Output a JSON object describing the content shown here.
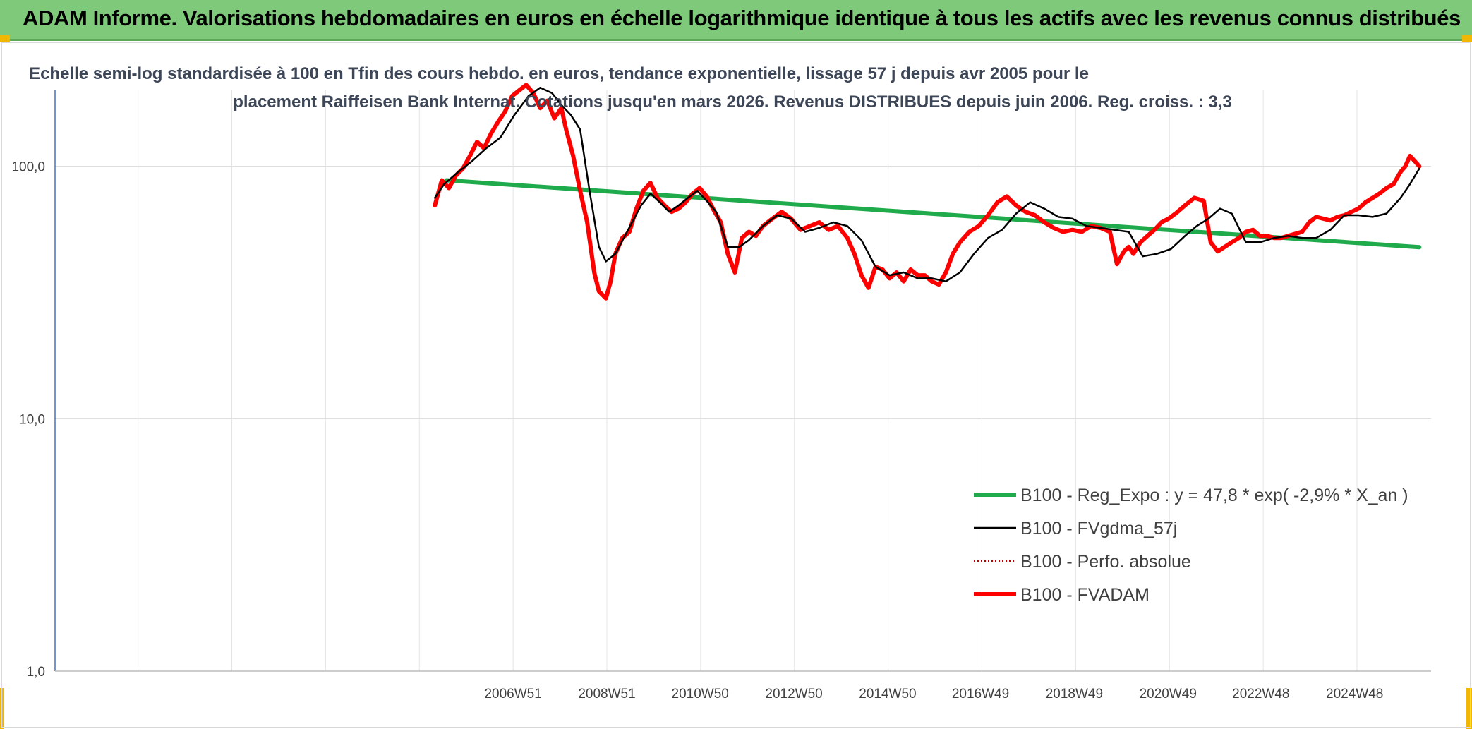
{
  "banner": {
    "title": "ADAM Informe. Valorisations hebdomadaires en euros en échelle logarithmique identique à tous les actifs avec les revenus connus distribués"
  },
  "chart_data": {
    "type": "line",
    "title_lines": [
      "Echelle semi-log standardisée à 100 en Tfin des cours hebdo. en euros, tendance exponentielle, lissage 57 j depuis avr 2005 pour le",
      "placement Raiffeisen Bank Internat. Cotations jusqu'en mars 2026. Revenus DISTRIBUES depuis juin 2006. Reg. croiss. : 3,3"
    ],
    "y_scale": "log",
    "ylim": [
      1,
      200
    ],
    "y_ticks": [
      {
        "value": 1,
        "label": "1,0"
      },
      {
        "value": 10,
        "label": "10,0"
      },
      {
        "value": 100,
        "label": "100,0"
      }
    ],
    "x_range": [
      1997.2,
      2026.55
    ],
    "x_ticks": [
      {
        "value": 2006.97,
        "label": "2006W51"
      },
      {
        "value": 2008.97,
        "label": "2008W51"
      },
      {
        "value": 2010.96,
        "label": "2010W50"
      },
      {
        "value": 2012.96,
        "label": "2012W50"
      },
      {
        "value": 2014.96,
        "label": "2014W50"
      },
      {
        "value": 2016.94,
        "label": "2016W49"
      },
      {
        "value": 2018.94,
        "label": "2018W49"
      },
      {
        "value": 2020.94,
        "label": "2020W49"
      },
      {
        "value": 2022.92,
        "label": "2022W48"
      },
      {
        "value": 2024.92,
        "label": "2024W48"
      }
    ],
    "grid": true,
    "legend_position": "lower-right",
    "series": [
      {
        "name": "B100 - Reg_Expo : y = 47,8 * exp( -2,9% *  X_an )",
        "style": "solid-thick",
        "color": "#1faa4b",
        "x": [
          2005.55,
          2026.3
        ],
        "y": [
          88,
          47.8
        ]
      },
      {
        "name": "B100 - FVgdma_57j",
        "style": "solid-thin",
        "color": "#000000",
        "x": [
          2005.3,
          2005.5,
          2005.8,
          2006.1,
          2006.4,
          2006.7,
          2007.0,
          2007.3,
          2007.55,
          2007.8,
          2008.0,
          2008.2,
          2008.4,
          2008.6,
          2008.8,
          2008.95,
          2009.15,
          2009.4,
          2009.7,
          2009.9,
          2010.1,
          2010.3,
          2010.5,
          2010.7,
          2010.9,
          2011.1,
          2011.3,
          2011.55,
          2011.8,
          2012.0,
          2012.3,
          2012.6,
          2012.9,
          2013.2,
          2013.5,
          2013.8,
          2014.1,
          2014.4,
          2014.7,
          2015.0,
          2015.3,
          2015.6,
          2015.9,
          2016.2,
          2016.5,
          2016.8,
          2017.1,
          2017.4,
          2017.7,
          2018.0,
          2018.3,
          2018.6,
          2018.9,
          2019.2,
          2019.5,
          2019.8,
          2020.1,
          2020.4,
          2020.7,
          2021.0,
          2021.3,
          2021.55,
          2021.8,
          2022.05,
          2022.3,
          2022.6,
          2022.9,
          2023.2,
          2023.5,
          2023.8,
          2024.1,
          2024.4,
          2024.7,
          2025.0,
          2025.3,
          2025.6,
          2025.9,
          2026.1,
          2026.3
        ],
        "y": [
          75,
          85,
          95,
          105,
          118,
          130,
          160,
          190,
          205,
          195,
          175,
          160,
          140,
          80,
          48,
          42,
          45,
          55,
          70,
          78,
          72,
          66,
          70,
          75,
          80,
          73,
          66,
          48,
          48,
          51,
          58,
          64,
          62,
          55,
          57,
          60,
          58,
          51,
          40,
          37,
          38,
          36,
          36,
          35,
          38,
          45,
          52,
          56,
          65,
          72,
          68,
          63,
          62,
          58,
          57,
          56,
          55,
          44,
          45,
          47,
          53,
          58,
          62,
          68,
          65,
          50,
          50,
          52,
          53,
          52,
          52,
          56,
          64,
          64,
          63,
          65,
          75,
          85,
          98
        ]
      },
      {
        "name": "B100 - Perfo. absolue",
        "style": "dotted",
        "color": "#c00000",
        "x": [],
        "y": []
      },
      {
        "name": "B100 - FVADAM",
        "style": "solid-thick",
        "color": "#ff0000",
        "x": [
          2005.3,
          2005.45,
          2005.6,
          2005.75,
          2005.9,
          2006.05,
          2006.2,
          2006.35,
          2006.5,
          2006.65,
          2006.8,
          2006.95,
          2007.1,
          2007.25,
          2007.4,
          2007.55,
          2007.7,
          2007.85,
          2008.0,
          2008.1,
          2008.25,
          2008.4,
          2008.55,
          2008.7,
          2008.8,
          2008.95,
          2009.05,
          2009.15,
          2009.3,
          2009.45,
          2009.6,
          2009.75,
          2009.9,
          2010.05,
          2010.2,
          2010.35,
          2010.5,
          2010.65,
          2010.8,
          2010.95,
          2011.1,
          2011.25,
          2011.4,
          2011.55,
          2011.7,
          2011.85,
          2012.0,
          2012.15,
          2012.3,
          2012.5,
          2012.7,
          2012.9,
          2013.1,
          2013.3,
          2013.5,
          2013.7,
          2013.9,
          2014.1,
          2014.25,
          2014.4,
          2014.55,
          2014.7,
          2014.85,
          2015.0,
          2015.15,
          2015.3,
          2015.45,
          2015.6,
          2015.75,
          2015.9,
          2016.05,
          2016.2,
          2016.35,
          2016.5,
          2016.7,
          2016.9,
          2017.1,
          2017.3,
          2017.5,
          2017.7,
          2017.9,
          2018.1,
          2018.3,
          2018.5,
          2018.7,
          2018.9,
          2019.1,
          2019.3,
          2019.5,
          2019.7,
          2019.85,
          2020.0,
          2020.1,
          2020.2,
          2020.35,
          2020.5,
          2020.65,
          2020.8,
          2020.95,
          2021.1,
          2021.3,
          2021.5,
          2021.7,
          2021.85,
          2022.0,
          2022.15,
          2022.3,
          2022.45,
          2022.6,
          2022.75,
          2022.9,
          2023.05,
          2023.2,
          2023.35,
          2023.5,
          2023.65,
          2023.8,
          2023.95,
          2024.1,
          2024.25,
          2024.4,
          2024.55,
          2024.7,
          2024.85,
          2025.0,
          2025.15,
          2025.3,
          2025.45,
          2025.6,
          2025.75,
          2025.9,
          2026.0,
          2026.1,
          2026.2,
          2026.3
        ],
        "y": [
          70,
          88,
          82,
          92,
          98,
          110,
          125,
          118,
          135,
          150,
          165,
          190,
          200,
          210,
          195,
          170,
          182,
          155,
          170,
          140,
          110,
          80,
          60,
          38,
          32,
          30,
          35,
          45,
          52,
          55,
          68,
          80,
          86,
          75,
          70,
          66,
          68,
          72,
          78,
          82,
          76,
          67,
          60,
          45,
          38,
          52,
          55,
          53,
          58,
          62,
          66,
          62,
          56,
          58,
          60,
          56,
          58,
          52,
          45,
          37,
          33,
          40,
          39,
          36,
          38,
          35,
          39,
          37,
          37,
          35,
          34,
          38,
          45,
          50,
          55,
          58,
          64,
          72,
          76,
          70,
          66,
          64,
          60,
          57,
          55,
          56,
          55,
          58,
          57,
          55,
          41,
          46,
          48,
          45,
          50,
          53,
          56,
          60,
          62,
          65,
          70,
          75,
          73,
          50,
          46,
          48,
          50,
          52,
          55,
          56,
          53,
          53,
          52,
          52,
          53,
          54,
          55,
          60,
          63,
          62,
          61,
          63,
          64,
          66,
          68,
          72,
          75,
          78,
          82,
          85,
          95,
          100,
          110,
          105,
          100
        ]
      }
    ]
  }
}
